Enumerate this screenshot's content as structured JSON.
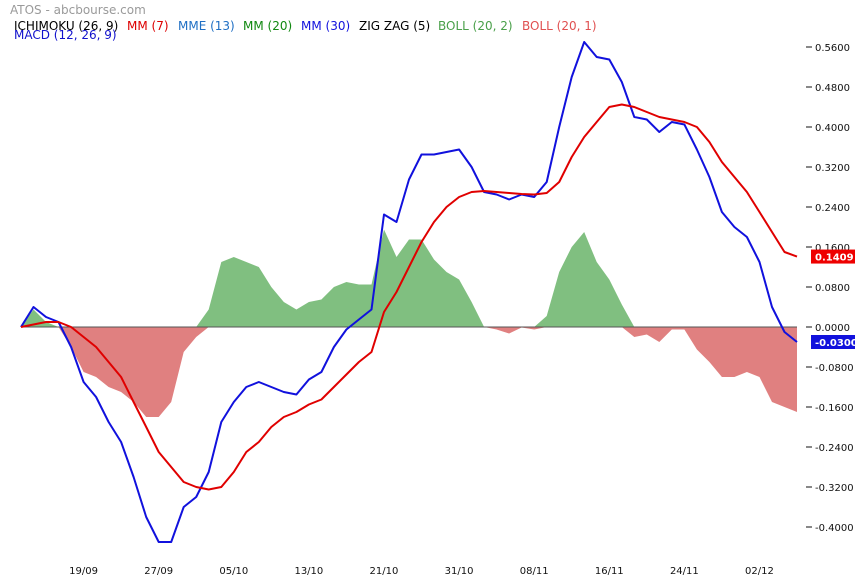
{
  "header": {
    "source": "ATOS - abcbourse.com",
    "legend": [
      {
        "label": "ICHIMOKU (26, 9)",
        "color": "#000000"
      },
      {
        "label": "MM (7)",
        "color": "#dd0000"
      },
      {
        "label": "MME (13)",
        "color": "#1f6fc4"
      },
      {
        "label": "MM (20)",
        "color": "#118811"
      },
      {
        "label": "MM (30)",
        "color": "#1111dd"
      },
      {
        "label": "ZIG ZAG (5)",
        "color": "#000000"
      },
      {
        "label": "BOLL (20, 2)",
        "color": "#4aa04a"
      },
      {
        "label": "BOLL (20, 1)",
        "color": "#e05050"
      }
    ],
    "indicator_label": "MACD (12, 26, 9)",
    "indicator_color": "#1111cc"
  },
  "chart_data": {
    "type": "line",
    "title": "",
    "xlabel": "",
    "ylabel": "",
    "ylim": [
      -0.44,
      0.6
    ],
    "yticks": [
      "0.5600",
      "0.4800",
      "0.4000",
      "0.3200",
      "0.2400",
      "0.1600",
      "0.0800",
      "0.0000",
      "-0.0800",
      "-0.1600",
      "-0.2400",
      "-0.3200",
      "-0.4000"
    ],
    "xtick_labels": [
      {
        "label": "19/09",
        "index": 5
      },
      {
        "label": "27/09",
        "index": 11
      },
      {
        "label": "05/10",
        "index": 17
      },
      {
        "label": "13/10",
        "index": 23
      },
      {
        "label": "21/10",
        "index": 29
      },
      {
        "label": "31/10",
        "index": 35
      },
      {
        "label": "08/11",
        "index": 41
      },
      {
        "label": "16/11",
        "index": 47
      },
      {
        "label": "24/11",
        "index": 53
      },
      {
        "label": "02/12",
        "index": 59
      }
    ],
    "grid": false,
    "series": [
      {
        "name": "MACD",
        "color": "#1111dd",
        "values": [
          0.0,
          0.04,
          0.02,
          0.01,
          -0.04,
          -0.11,
          -0.14,
          -0.19,
          -0.23,
          -0.3,
          -0.38,
          -0.43,
          -0.43,
          -0.36,
          -0.34,
          -0.29,
          -0.19,
          -0.15,
          -0.12,
          -0.11,
          -0.12,
          -0.13,
          -0.135,
          -0.105,
          -0.09,
          -0.04,
          -0.005,
          0.015,
          0.035,
          0.225,
          0.21,
          0.295,
          0.345,
          0.345,
          0.35,
          0.355,
          0.32,
          0.27,
          0.265,
          0.255,
          0.265,
          0.26,
          0.29,
          0.4,
          0.5,
          0.57,
          0.54,
          0.535,
          0.49,
          0.42,
          0.415,
          0.39,
          0.41,
          0.405,
          0.355,
          0.3,
          0.23,
          0.2,
          0.18,
          0.13,
          0.04,
          -0.01,
          -0.03
        ]
      },
      {
        "name": "Signal",
        "color": "#e00000",
        "values": [
          0.0,
          0.005,
          0.01,
          0.01,
          0.0,
          -0.02,
          -0.04,
          -0.07,
          -0.1,
          -0.15,
          -0.2,
          -0.25,
          -0.28,
          -0.31,
          -0.32,
          -0.325,
          -0.32,
          -0.29,
          -0.25,
          -0.23,
          -0.2,
          -0.18,
          -0.17,
          -0.155,
          -0.145,
          -0.12,
          -0.095,
          -0.07,
          -0.05,
          0.03,
          0.07,
          0.12,
          0.17,
          0.21,
          0.24,
          0.26,
          0.27,
          0.272,
          0.27,
          0.268,
          0.266,
          0.265,
          0.268,
          0.29,
          0.34,
          0.38,
          0.41,
          0.44,
          0.445,
          0.44,
          0.43,
          0.42,
          0.415,
          0.41,
          0.4,
          0.37,
          0.33,
          0.3,
          0.27,
          0.23,
          0.19,
          0.15,
          0.1409
        ]
      }
    ],
    "histogram": {
      "name": "MACD - Signal",
      "positive_color": "#80bf80",
      "negative_color": "#e08080",
      "values": [
        0.0,
        0.035,
        0.01,
        0.0,
        -0.04,
        -0.09,
        -0.1,
        -0.12,
        -0.13,
        -0.15,
        -0.18,
        -0.18,
        -0.15,
        -0.05,
        -0.02,
        0.035,
        0.13,
        0.14,
        0.13,
        0.12,
        0.08,
        0.05,
        0.035,
        0.05,
        0.055,
        0.08,
        0.09,
        0.085,
        0.085,
        0.195,
        0.14,
        0.175,
        0.175,
        0.135,
        0.11,
        0.095,
        0.05,
        0.0,
        -0.005,
        -0.013,
        -0.001,
        -0.005,
        0.022,
        0.11,
        0.16,
        0.19,
        0.13,
        0.095,
        0.045,
        -0.02,
        -0.015,
        -0.03,
        -0.005,
        -0.005,
        -0.045,
        -0.07,
        -0.1,
        -0.1,
        -0.09,
        -0.1,
        -0.15,
        -0.16,
        -0.17
      ]
    },
    "last_values": [
      {
        "label": "0.1409",
        "value": 0.1409,
        "color": "#ee0000"
      },
      {
        "label": "-0.0300",
        "value": -0.03,
        "color": "#1111dd"
      }
    ]
  }
}
